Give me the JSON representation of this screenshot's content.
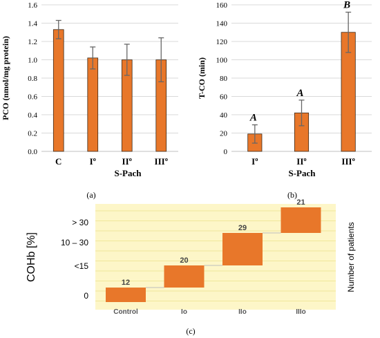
{
  "colors": {
    "bar": "#e8772a",
    "bar_stroke": "#3a2a1a",
    "error": "#666666",
    "grid": "#d9d9d9",
    "panel_c_bg": "#fdf6c8",
    "panel_c_grid": "#f0e79a",
    "axis_text": "#333333"
  },
  "chart_data": [
    {
      "id": "a",
      "type": "bar",
      "panel_label": "(a)",
      "categories": [
        "C",
        "Iº",
        "IIº",
        "IIIº"
      ],
      "values": [
        1.33,
        1.02,
        1.0,
        1.0
      ],
      "errors": [
        0.1,
        0.12,
        0.17,
        0.24
      ],
      "xlabel": "S-Pach",
      "ylabel": "PCO (nmol/mg protein)",
      "ylim": [
        0,
        1.6
      ],
      "yticks": [
        "0.0",
        "0.2",
        "0.4",
        "0.6",
        "0.8",
        "1.0",
        "1.2",
        "1.4",
        "1.6"
      ],
      "grid": true
    },
    {
      "id": "b",
      "type": "bar",
      "panel_label": "(b)",
      "categories": [
        "Iº",
        "IIº",
        "IIIº"
      ],
      "values": [
        19,
        42,
        130
      ],
      "errors": [
        10,
        14,
        22
      ],
      "annotations": [
        "A",
        "A",
        "B"
      ],
      "xlabel": "S-Pach",
      "ylabel": "T-CO (min)",
      "ylim": [
        0,
        160
      ],
      "yticks": [
        "0",
        "20",
        "40",
        "60",
        "80",
        "100",
        "120",
        "140",
        "160"
      ],
      "grid": true
    },
    {
      "id": "c",
      "type": "bar",
      "subtype": "floating",
      "panel_label": "(c)",
      "categories": [
        "Control",
        "Io",
        "IIo",
        "IIIo"
      ],
      "values": [
        12,
        20,
        29,
        21
      ],
      "ranges": [
        [
          0,
          1
        ],
        [
          1,
          2
        ],
        [
          2,
          3
        ],
        [
          3,
          4
        ]
      ],
      "ylabel": "COHb [%]",
      "y_right_label": "Number of patients",
      "yticks": [
        "0",
        "<15",
        "10 – 30",
        "> 30"
      ],
      "grid": true
    }
  ]
}
